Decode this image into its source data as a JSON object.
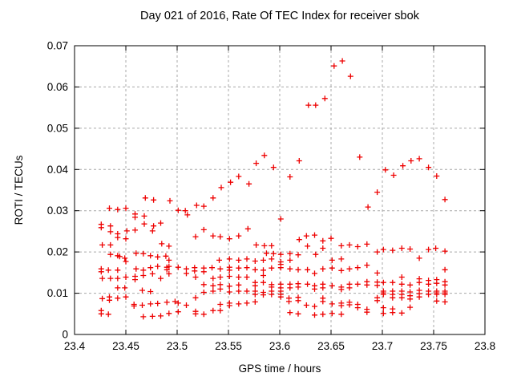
{
  "chart_data": {
    "type": "scatter",
    "title": "Day 021 of 2016, Rate Of TEC Index for receiver sbok",
    "xlabel": "GPS time / hours",
    "ylabel": "ROTI / TECUs",
    "xlim": [
      23.4,
      23.8
    ],
    "ylim": [
      0,
      0.07
    ],
    "xticks": [
      "23.4",
      "23.45",
      "23.5",
      "23.55",
      "23.6",
      "23.65",
      "23.7",
      "23.75",
      "23.8"
    ],
    "yticks": [
      "0",
      "0.01",
      "0.02",
      "0.03",
      "0.04",
      "0.05",
      "0.06",
      "0.07"
    ],
    "grid": true,
    "legend": "none",
    "marker": "plus",
    "marker_color": "#ee0000",
    "grid_color": "#a8a8a8",
    "points": [
      [
        23.543,
        0.0356
      ],
      [
        23.552,
        0.0369
      ],
      [
        23.56,
        0.0383
      ],
      [
        23.57,
        0.0365
      ],
      [
        23.577,
        0.0415
      ],
      [
        23.585,
        0.0434
      ],
      [
        23.594,
        0.0405
      ],
      [
        23.61,
        0.0382
      ],
      [
        23.619,
        0.0421
      ],
      [
        23.628,
        0.0556
      ],
      [
        23.635,
        0.0556
      ],
      [
        23.644,
        0.0572
      ],
      [
        23.653,
        0.0651
      ],
      [
        23.661,
        0.0663
      ],
      [
        23.669,
        0.0626
      ],
      [
        23.678,
        0.043
      ],
      [
        23.703,
        0.0399
      ],
      [
        23.711,
        0.0386
      ],
      [
        23.72,
        0.0409
      ],
      [
        23.728,
        0.0421
      ],
      [
        23.736,
        0.0426
      ],
      [
        23.745,
        0.0405
      ],
      [
        23.753,
        0.0384
      ],
      [
        23.686,
        0.0309
      ],
      [
        23.695,
        0.0345
      ],
      [
        23.601,
        0.028
      ],
      [
        23.761,
        0.0327
      ],
      [
        23.469,
        0.0331
      ],
      [
        23.477,
        0.0326
      ],
      [
        23.493,
        0.0324
      ],
      [
        23.434,
        0.0306
      ],
      [
        23.442,
        0.0303
      ],
      [
        23.45,
        0.0306
      ],
      [
        23.459,
        0.0292
      ],
      [
        23.459,
        0.0284
      ],
      [
        23.468,
        0.0287
      ],
      [
        23.426,
        0.0267
      ],
      [
        23.426,
        0.0259
      ],
      [
        23.435,
        0.0263
      ],
      [
        23.468,
        0.0268
      ],
      [
        23.477,
        0.0263
      ],
      [
        23.484,
        0.027
      ],
      [
        23.435,
        0.0249
      ],
      [
        23.442,
        0.0244
      ],
      [
        23.451,
        0.0251
      ],
      [
        23.459,
        0.0253
      ],
      [
        23.476,
        0.0251
      ],
      [
        23.442,
        0.0235
      ],
      [
        23.45,
        0.0232
      ],
      [
        23.427,
        0.0217
      ],
      [
        23.435,
        0.0217
      ],
      [
        23.485,
        0.022
      ],
      [
        23.492,
        0.0214
      ],
      [
        23.435,
        0.0194
      ],
      [
        23.442,
        0.0191
      ],
      [
        23.444,
        0.0189
      ],
      [
        23.449,
        0.0185
      ],
      [
        23.45,
        0.0177
      ],
      [
        23.46,
        0.0197
      ],
      [
        23.467,
        0.0196
      ],
      [
        23.474,
        0.0191
      ],
      [
        23.481,
        0.0188
      ],
      [
        23.489,
        0.019
      ],
      [
        23.492,
        0.018
      ],
      [
        23.426,
        0.0159
      ],
      [
        23.426,
        0.0152
      ],
      [
        23.433,
        0.0156
      ],
      [
        23.442,
        0.0156
      ],
      [
        23.46,
        0.0159
      ],
      [
        23.467,
        0.0156
      ],
      [
        23.474,
        0.0162
      ],
      [
        23.481,
        0.0165
      ],
      [
        23.49,
        0.0163
      ],
      [
        23.49,
        0.0157
      ],
      [
        23.492,
        0.0165
      ],
      [
        23.427,
        0.0136
      ],
      [
        23.435,
        0.0136
      ],
      [
        23.442,
        0.0136
      ],
      [
        23.45,
        0.0139
      ],
      [
        23.459,
        0.0141
      ],
      [
        23.459,
        0.0133
      ],
      [
        23.467,
        0.0143
      ],
      [
        23.476,
        0.0147
      ],
      [
        23.484,
        0.0136
      ],
      [
        23.492,
        0.0147
      ],
      [
        23.442,
        0.0113
      ],
      [
        23.449,
        0.0113
      ],
      [
        23.466,
        0.0107
      ],
      [
        23.474,
        0.0104
      ],
      [
        23.427,
        0.0087
      ],
      [
        23.434,
        0.0091
      ],
      [
        23.434,
        0.0083
      ],
      [
        23.442,
        0.0088
      ],
      [
        23.45,
        0.0091
      ],
      [
        23.458,
        0.0073
      ],
      [
        23.458,
        0.0069
      ],
      [
        23.466,
        0.0071
      ],
      [
        23.474,
        0.0074
      ],
      [
        23.481,
        0.0075
      ],
      [
        23.49,
        0.0078
      ],
      [
        23.498,
        0.008
      ],
      [
        23.426,
        0.0058
      ],
      [
        23.426,
        0.005
      ],
      [
        23.433,
        0.0049
      ],
      [
        23.467,
        0.0043
      ],
      [
        23.476,
        0.0044
      ],
      [
        23.484,
        0.0045
      ],
      [
        23.492,
        0.0051
      ],
      [
        23.535,
        0.0331
      ],
      [
        23.519,
        0.0313
      ],
      [
        23.526,
        0.0311
      ],
      [
        23.501,
        0.0301
      ],
      [
        23.508,
        0.03
      ],
      [
        23.51,
        0.029
      ],
      [
        23.526,
        0.0254
      ],
      [
        23.569,
        0.0256
      ],
      [
        23.518,
        0.0237
      ],
      [
        23.535,
        0.0239
      ],
      [
        23.542,
        0.0237
      ],
      [
        23.551,
        0.0232
      ],
      [
        23.56,
        0.0239
      ],
      [
        23.577,
        0.0217
      ],
      [
        23.585,
        0.0215
      ],
      [
        23.592,
        0.0215
      ],
      [
        23.587,
        0.0197
      ],
      [
        23.594,
        0.0196
      ],
      [
        23.541,
        0.018
      ],
      [
        23.551,
        0.0183
      ],
      [
        23.56,
        0.018
      ],
      [
        23.568,
        0.0183
      ],
      [
        23.576,
        0.0178
      ],
      [
        23.584,
        0.018
      ],
      [
        23.592,
        0.0183
      ],
      [
        23.501,
        0.0163
      ],
      [
        23.509,
        0.0159
      ],
      [
        23.517,
        0.0162
      ],
      [
        23.517,
        0.0154
      ],
      [
        23.526,
        0.0161
      ],
      [
        23.526,
        0.0152
      ],
      [
        23.534,
        0.0162
      ],
      [
        23.542,
        0.0159
      ],
      [
        23.551,
        0.0163
      ],
      [
        23.551,
        0.0156
      ],
      [
        23.56,
        0.0161
      ],
      [
        23.568,
        0.0162
      ],
      [
        23.576,
        0.0157
      ],
      [
        23.584,
        0.0156
      ],
      [
        23.592,
        0.0161
      ],
      [
        23.509,
        0.0148
      ],
      [
        23.518,
        0.0139
      ],
      [
        23.535,
        0.0136
      ],
      [
        23.542,
        0.0139
      ],
      [
        23.551,
        0.0141
      ],
      [
        23.56,
        0.0139
      ],
      [
        23.568,
        0.0139
      ],
      [
        23.584,
        0.0143
      ],
      [
        23.526,
        0.0121
      ],
      [
        23.535,
        0.0118
      ],
      [
        23.542,
        0.0121
      ],
      [
        23.551,
        0.0117
      ],
      [
        23.56,
        0.012
      ],
      [
        23.576,
        0.0126
      ],
      [
        23.576,
        0.0118
      ],
      [
        23.584,
        0.0126
      ],
      [
        23.592,
        0.0121
      ],
      [
        23.592,
        0.0115
      ],
      [
        23.526,
        0.0102
      ],
      [
        23.535,
        0.0105
      ],
      [
        23.542,
        0.011
      ],
      [
        23.551,
        0.0103
      ],
      [
        23.56,
        0.0105
      ],
      [
        23.568,
        0.0105
      ],
      [
        23.576,
        0.0105
      ],
      [
        23.576,
        0.0097
      ],
      [
        23.584,
        0.0102
      ],
      [
        23.584,
        0.0096
      ],
      [
        23.592,
        0.0105
      ],
      [
        23.592,
        0.0097
      ],
      [
        23.518,
        0.0089
      ],
      [
        23.501,
        0.0076
      ],
      [
        23.509,
        0.0071
      ],
      [
        23.542,
        0.0073
      ],
      [
        23.551,
        0.0076
      ],
      [
        23.551,
        0.007
      ],
      [
        23.56,
        0.0074
      ],
      [
        23.568,
        0.0076
      ],
      [
        23.576,
        0.0079
      ],
      [
        23.501,
        0.0055
      ],
      [
        23.518,
        0.0056
      ],
      [
        23.518,
        0.005
      ],
      [
        23.526,
        0.0049
      ],
      [
        23.535,
        0.0058
      ],
      [
        23.542,
        0.0058
      ],
      [
        23.619,
        0.023
      ],
      [
        23.626,
        0.0239
      ],
      [
        23.634,
        0.0241
      ],
      [
        23.627,
        0.0214
      ],
      [
        23.642,
        0.0227
      ],
      [
        23.65,
        0.0233
      ],
      [
        23.642,
        0.0209
      ],
      [
        23.66,
        0.0215
      ],
      [
        23.668,
        0.0217
      ],
      [
        23.676,
        0.0213
      ],
      [
        23.685,
        0.0219
      ],
      [
        23.695,
        0.02
      ],
      [
        23.635,
        0.0194
      ],
      [
        23.61,
        0.0196
      ],
      [
        23.601,
        0.0194
      ],
      [
        23.618,
        0.0193
      ],
      [
        23.61,
        0.018
      ],
      [
        23.601,
        0.0176
      ],
      [
        23.651,
        0.018
      ],
      [
        23.66,
        0.0183
      ],
      [
        23.601,
        0.017
      ],
      [
        23.601,
        0.0162
      ],
      [
        23.61,
        0.0159
      ],
      [
        23.618,
        0.0157
      ],
      [
        23.627,
        0.0157
      ],
      [
        23.634,
        0.0148
      ],
      [
        23.642,
        0.0159
      ],
      [
        23.651,
        0.0161
      ],
      [
        23.66,
        0.0155
      ],
      [
        23.668,
        0.0159
      ],
      [
        23.676,
        0.0162
      ],
      [
        23.685,
        0.0168
      ],
      [
        23.695,
        0.0149
      ],
      [
        23.601,
        0.0122
      ],
      [
        23.601,
        0.0113
      ],
      [
        23.61,
        0.0122
      ],
      [
        23.61,
        0.0113
      ],
      [
        23.618,
        0.0123
      ],
      [
        23.618,
        0.0115
      ],
      [
        23.627,
        0.0122
      ],
      [
        23.634,
        0.0118
      ],
      [
        23.634,
        0.011
      ],
      [
        23.642,
        0.0122
      ],
      [
        23.642,
        0.0113
      ],
      [
        23.651,
        0.0118
      ],
      [
        23.66,
        0.0115
      ],
      [
        23.66,
        0.0109
      ],
      [
        23.668,
        0.0122
      ],
      [
        23.668,
        0.0113
      ],
      [
        23.676,
        0.0122
      ],
      [
        23.685,
        0.0128
      ],
      [
        23.685,
        0.012
      ],
      [
        23.695,
        0.0127
      ],
      [
        23.695,
        0.0119
      ],
      [
        23.601,
        0.0105
      ],
      [
        23.601,
        0.0097
      ],
      [
        23.601,
        0.0091
      ],
      [
        23.609,
        0.0088
      ],
      [
        23.609,
        0.008
      ],
      [
        23.618,
        0.009
      ],
      [
        23.618,
        0.0082
      ],
      [
        23.626,
        0.0071
      ],
      [
        23.634,
        0.0068
      ],
      [
        23.642,
        0.0088
      ],
      [
        23.642,
        0.008
      ],
      [
        23.651,
        0.0074
      ],
      [
        23.66,
        0.0076
      ],
      [
        23.66,
        0.007
      ],
      [
        23.668,
        0.0078
      ],
      [
        23.668,
        0.0072
      ],
      [
        23.676,
        0.0073
      ],
      [
        23.676,
        0.0065
      ],
      [
        23.685,
        0.0061
      ],
      [
        23.685,
        0.0054
      ],
      [
        23.695,
        0.0089
      ],
      [
        23.695,
        0.0082
      ],
      [
        23.61,
        0.0053
      ],
      [
        23.618,
        0.005
      ],
      [
        23.634,
        0.0047
      ],
      [
        23.642,
        0.0049
      ],
      [
        23.651,
        0.0051
      ],
      [
        23.66,
        0.0049
      ],
      [
        23.701,
        0.0206
      ],
      [
        23.71,
        0.0204
      ],
      [
        23.719,
        0.0209
      ],
      [
        23.727,
        0.0207
      ],
      [
        23.745,
        0.0206
      ],
      [
        23.752,
        0.0209
      ],
      [
        23.761,
        0.0202
      ],
      [
        23.736,
        0.0185
      ],
      [
        23.761,
        0.0157
      ],
      [
        23.701,
        0.0126
      ],
      [
        23.71,
        0.0126
      ],
      [
        23.719,
        0.0139
      ],
      [
        23.719,
        0.0122
      ],
      [
        23.727,
        0.012
      ],
      [
        23.736,
        0.0135
      ],
      [
        23.736,
        0.0126
      ],
      [
        23.745,
        0.0131
      ],
      [
        23.745,
        0.0122
      ],
      [
        23.753,
        0.0133
      ],
      [
        23.753,
        0.0124
      ],
      [
        23.761,
        0.0128
      ],
      [
        23.761,
        0.012
      ],
      [
        23.701,
        0.0105
      ],
      [
        23.701,
        0.0101
      ],
      [
        23.701,
        0.0097
      ],
      [
        23.71,
        0.0105
      ],
      [
        23.71,
        0.0097
      ],
      [
        23.71,
        0.0089
      ],
      [
        23.719,
        0.0105
      ],
      [
        23.719,
        0.0097
      ],
      [
        23.719,
        0.0089
      ],
      [
        23.727,
        0.0103
      ],
      [
        23.727,
        0.0094
      ],
      [
        23.727,
        0.0086
      ],
      [
        23.736,
        0.0107
      ],
      [
        23.736,
        0.0099
      ],
      [
        23.736,
        0.0091
      ],
      [
        23.745,
        0.0105
      ],
      [
        23.745,
        0.0097
      ],
      [
        23.753,
        0.0105
      ],
      [
        23.753,
        0.0101
      ],
      [
        23.753,
        0.0097
      ],
      [
        23.761,
        0.0105
      ],
      [
        23.761,
        0.0101
      ],
      [
        23.761,
        0.0097
      ],
      [
        23.753,
        0.0081
      ],
      [
        23.761,
        0.0079
      ],
      [
        23.701,
        0.0065
      ],
      [
        23.701,
        0.0051
      ],
      [
        23.71,
        0.0062
      ],
      [
        23.71,
        0.0053
      ],
      [
        23.719,
        0.0052
      ],
      [
        23.727,
        0.0066
      ]
    ]
  }
}
